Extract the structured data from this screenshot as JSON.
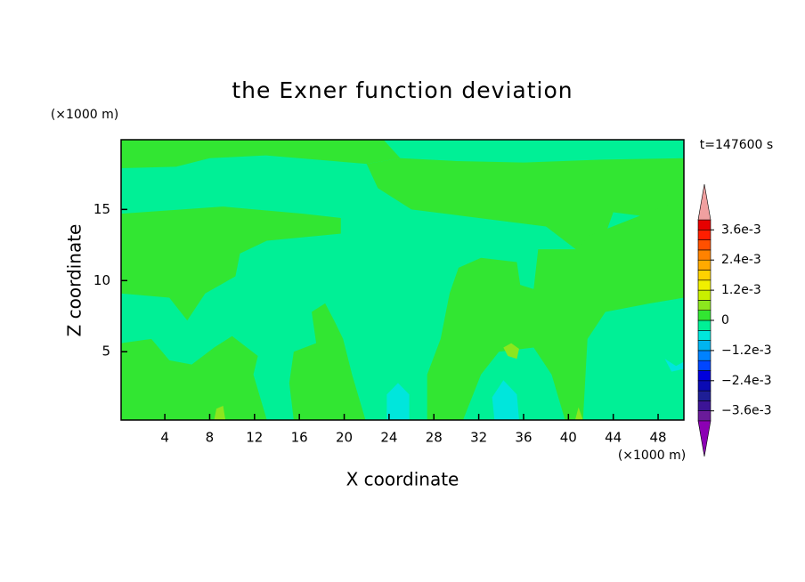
{
  "chart_data": {
    "type": "contour",
    "title": "the Exner function deviation",
    "xlabel": "X coordinate",
    "ylabel": "Z coordinate",
    "xunit": "(×1000 m)",
    "yunit": "(×1000 m)",
    "time_label": "t=147600 s",
    "xlim": [
      0.1,
      50.3
    ],
    "ylim": [
      0.2,
      19.9
    ],
    "xticks": [
      4,
      8,
      12,
      16,
      20,
      24,
      28,
      32,
      36,
      40,
      44,
      48
    ],
    "yticks": [
      5,
      10,
      15
    ],
    "colorbar": {
      "levels": [
        -0.004,
        -0.0036,
        -0.0032,
        -0.0028,
        -0.0024,
        -0.002,
        -0.0016,
        -0.0012,
        -0.0008,
        -0.0004,
        0,
        0.0004,
        0.0008,
        0.0012,
        0.0016,
        0.002,
        0.0024,
        0.0028,
        0.0032,
        0.0036,
        0.004
      ],
      "colors": [
        "#6a1b9a",
        "#3c1496",
        "#1e1e96",
        "#0a0ab4",
        "#0000dc",
        "#0046ff",
        "#0082ff",
        "#00b4f0",
        "#00e6dc",
        "#00f096",
        "#32e632",
        "#8ce61e",
        "#c8f000",
        "#f0f000",
        "#ffd200",
        "#ffaa00",
        "#ff8200",
        "#ff5000",
        "#ff1e00",
        "#e60000"
      ],
      "under_color": "#8c00b4",
      "over_color": "#f0a0a0",
      "ticks": [
        {
          "value": 0.0036,
          "label": "3.6e-3"
        },
        {
          "value": 0.0024,
          "label": "2.4e-3"
        },
        {
          "value": 0.0012,
          "label": "1.2e-3"
        },
        0,
        {
          "value": -0.0012,
          "label": "−1.2e-3"
        },
        {
          "value": -0.0024,
          "label": "−2.4e-3"
        },
        {
          "value": -0.0036,
          "label": "−3.6e-3"
        }
      ]
    },
    "regions": [
      {
        "range": [
          -0.0004,
          0
        ],
        "x": [
          0.1,
          50.3,
          50.3,
          0.1
        ],
        "z": [
          19.9,
          19.9,
          0.2,
          0.2
        ]
      },
      {
        "range": [
          0,
          0.0004
        ],
        "x": [
          0.1,
          23.5,
          25,
          22,
          13,
          8,
          5,
          0.1
        ],
        "z": [
          19.9,
          19.9,
          18.6,
          18.2,
          18.8,
          18.6,
          18.0,
          17.9
        ]
      },
      {
        "range": [
          0,
          0.0004
        ],
        "x": [
          22,
          25,
          30,
          36,
          43,
          50.3,
          50.3,
          47,
          44,
          42.5,
          41,
          38,
          31,
          26,
          23
        ],
        "z": [
          18.2,
          18.6,
          18.4,
          18.3,
          18.5,
          18.6,
          15.3,
          14.5,
          14.8,
          11.5,
          12.0,
          13.8,
          14.5,
          15.0,
          16.5
        ]
      },
      {
        "range": [
          0,
          0.0004
        ],
        "x": [
          0.1,
          9.2,
          16.3,
          19.7,
          19.7,
          13.1,
          10.7,
          10.3,
          7.6,
          6.0,
          4.4,
          0.1
        ],
        "z": [
          14.7,
          15.2,
          14.7,
          14.4,
          13.3,
          12.8,
          11.9,
          10.3,
          9.1,
          7.2,
          8.8,
          9.1
        ]
      },
      {
        "range": [
          0,
          0.0004
        ],
        "x": [
          30.2,
          32.2,
          35.4,
          35.7,
          36.9,
          37.3,
          40.9,
          41.7,
          44.9,
          48.8,
          50.3,
          50.3,
          47.3,
          43.3,
          41.7,
          41.3,
          39.7,
          38.5,
          36.9,
          33.8,
          32.2,
          30.6,
          27.4,
          27.4,
          28.6,
          29.4
        ],
        "z": [
          10.9,
          11.6,
          11.3,
          9.7,
          9.4,
          12.2,
          12.2,
          13.1,
          14.1,
          15.3,
          15.6,
          8.8,
          8.4,
          7.8,
          5.9,
          0.2,
          0.2,
          3.4,
          5.3,
          5.0,
          3.4,
          0.2,
          0.2,
          3.4,
          5.9,
          9.1
        ]
      },
      {
        "range": [
          0,
          0.0004
        ],
        "x": [
          0.1,
          2.8,
          4.4,
          6.4,
          8.4,
          10.0,
          12.3,
          11.9,
          13.1,
          0.1
        ],
        "z": [
          5.6,
          5.9,
          4.4,
          4.1,
          5.3,
          6.1,
          4.7,
          3.4,
          0.2,
          0.2
        ]
      },
      {
        "range": [
          0,
          0.0004
        ],
        "x": [
          15.5,
          17.5,
          17.1,
          18.3,
          19.1,
          19.9,
          20.7,
          21.9,
          15.5,
          15.1
        ],
        "z": [
          5.0,
          5.6,
          7.8,
          8.4,
          7.2,
          5.9,
          3.4,
          0.2,
          0.2,
          2.8
        ]
      },
      {
        "range": [
          -0.0008,
          -0.0004
        ],
        "x": [
          23.8,
          23.8,
          24.8,
          25.8,
          25.8
        ],
        "z": [
          0.2,
          2.0,
          2.8,
          2.0,
          0.2
        ]
      },
      {
        "range": [
          -0.0008,
          -0.0004
        ],
        "x": [
          33.4,
          33.2,
          34.2,
          35.4,
          35.6
        ],
        "z": [
          0.2,
          1.8,
          3.0,
          2.0,
          0.2
        ]
      },
      {
        "range": [
          -0.0008,
          -0.0004
        ],
        "x": [
          48.6,
          49.6,
          50.3,
          50.3,
          49.2
        ],
        "z": [
          4.5,
          4.0,
          4.3,
          3.8,
          3.6
        ]
      },
      {
        "range": [
          0.0004,
          0.0008
        ],
        "x": [
          34.2,
          34.6,
          35.4,
          35.6,
          34.9
        ],
        "z": [
          5.3,
          4.7,
          4.5,
          5.2,
          5.6
        ]
      },
      {
        "range": [
          0.0004,
          0.0008
        ],
        "x": [
          8.4,
          8.6,
          9.2,
          9.4
        ],
        "z": [
          0.2,
          1.0,
          1.2,
          0.2
        ]
      },
      {
        "range": [
          0.0004,
          0.0008
        ],
        "x": [
          40.6,
          40.9,
          41.3
        ],
        "z": [
          0.2,
          1.1,
          0.2
        ]
      }
    ]
  }
}
